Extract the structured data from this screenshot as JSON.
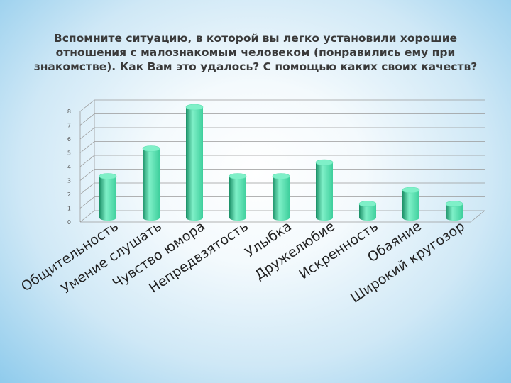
{
  "title": "Вспомните ситуацию, в которой вы легко установили хорошие отношения с малознакомым человеком (понравились ему при знакомстве). Как Вам это удалось? С помощью каких своих качеств?",
  "colors": {
    "bar_light": "#7ff0c8",
    "bar_mid": "#3ecf9c",
    "bar_dark": "#1a8f66",
    "grid": "#9a9a9a"
  },
  "chart_data": {
    "type": "bar",
    "title": "",
    "xlabel": "",
    "ylabel": "",
    "categories": [
      "Общительность",
      "Умение слушать",
      "Чувство юмора",
      "Непредвзятость",
      "Улыбка",
      "Дружелюбие",
      "Искренность",
      "Обаяние",
      "Широкий кругозор"
    ],
    "values": [
      3,
      5,
      8,
      3,
      3,
      4,
      1,
      2,
      1
    ],
    "ylim": [
      0,
      8
    ],
    "yticks": [
      "0",
      "1",
      "2",
      "3",
      "4",
      "5",
      "6",
      "7",
      "8"
    ],
    "grid": true,
    "legend": "none"
  }
}
